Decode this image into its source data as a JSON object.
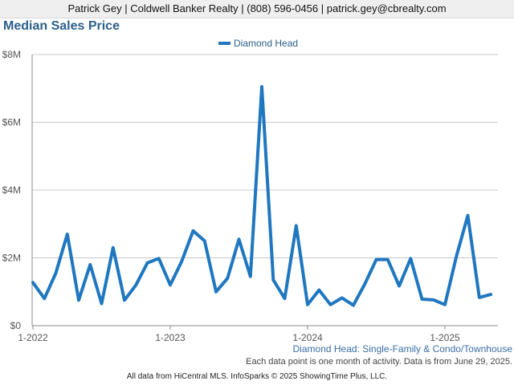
{
  "header": {
    "contact": "Patrick Gey | Coldwell Banker Realty | (808) 596-0456 | patrick.gey@cbrealty.com"
  },
  "chart_data": {
    "type": "line",
    "title": "Median Sales Price",
    "legend": "top-center",
    "grid": true,
    "ylim": [
      0,
      8000000
    ],
    "yticks": [
      "$0",
      "$2M",
      "$4M",
      "$6M",
      "$8M"
    ],
    "xticks": [
      "1-2022",
      "1-2023",
      "1-2024",
      "1-2025"
    ],
    "x_start": "2022-01",
    "color": "#1f77c0",
    "series": [
      {
        "name": "Diamond Head",
        "values": [
          1270000,
          800000,
          1550000,
          2700000,
          750000,
          1800000,
          650000,
          2300000,
          750000,
          1200000,
          1850000,
          1980000,
          1200000,
          1900000,
          2800000,
          2500000,
          1000000,
          1400000,
          2550000,
          1450000,
          7050000,
          1350000,
          800000,
          2950000,
          620000,
          1050000,
          620000,
          820000,
          600000,
          1230000,
          1950000,
          1950000,
          1170000,
          1980000,
          780000,
          760000,
          620000,
          2050000,
          3250000,
          830000,
          920000
        ]
      }
    ]
  },
  "subtitle": "Diamond Head: Single-Family & Condo/Townhouse",
  "note": "Each data point is one month of activity. Data is from June 29, 2025.",
  "footer": "All data from HiCentral MLS. InfoSparks © 2025 ShowingTime Plus, LLC."
}
